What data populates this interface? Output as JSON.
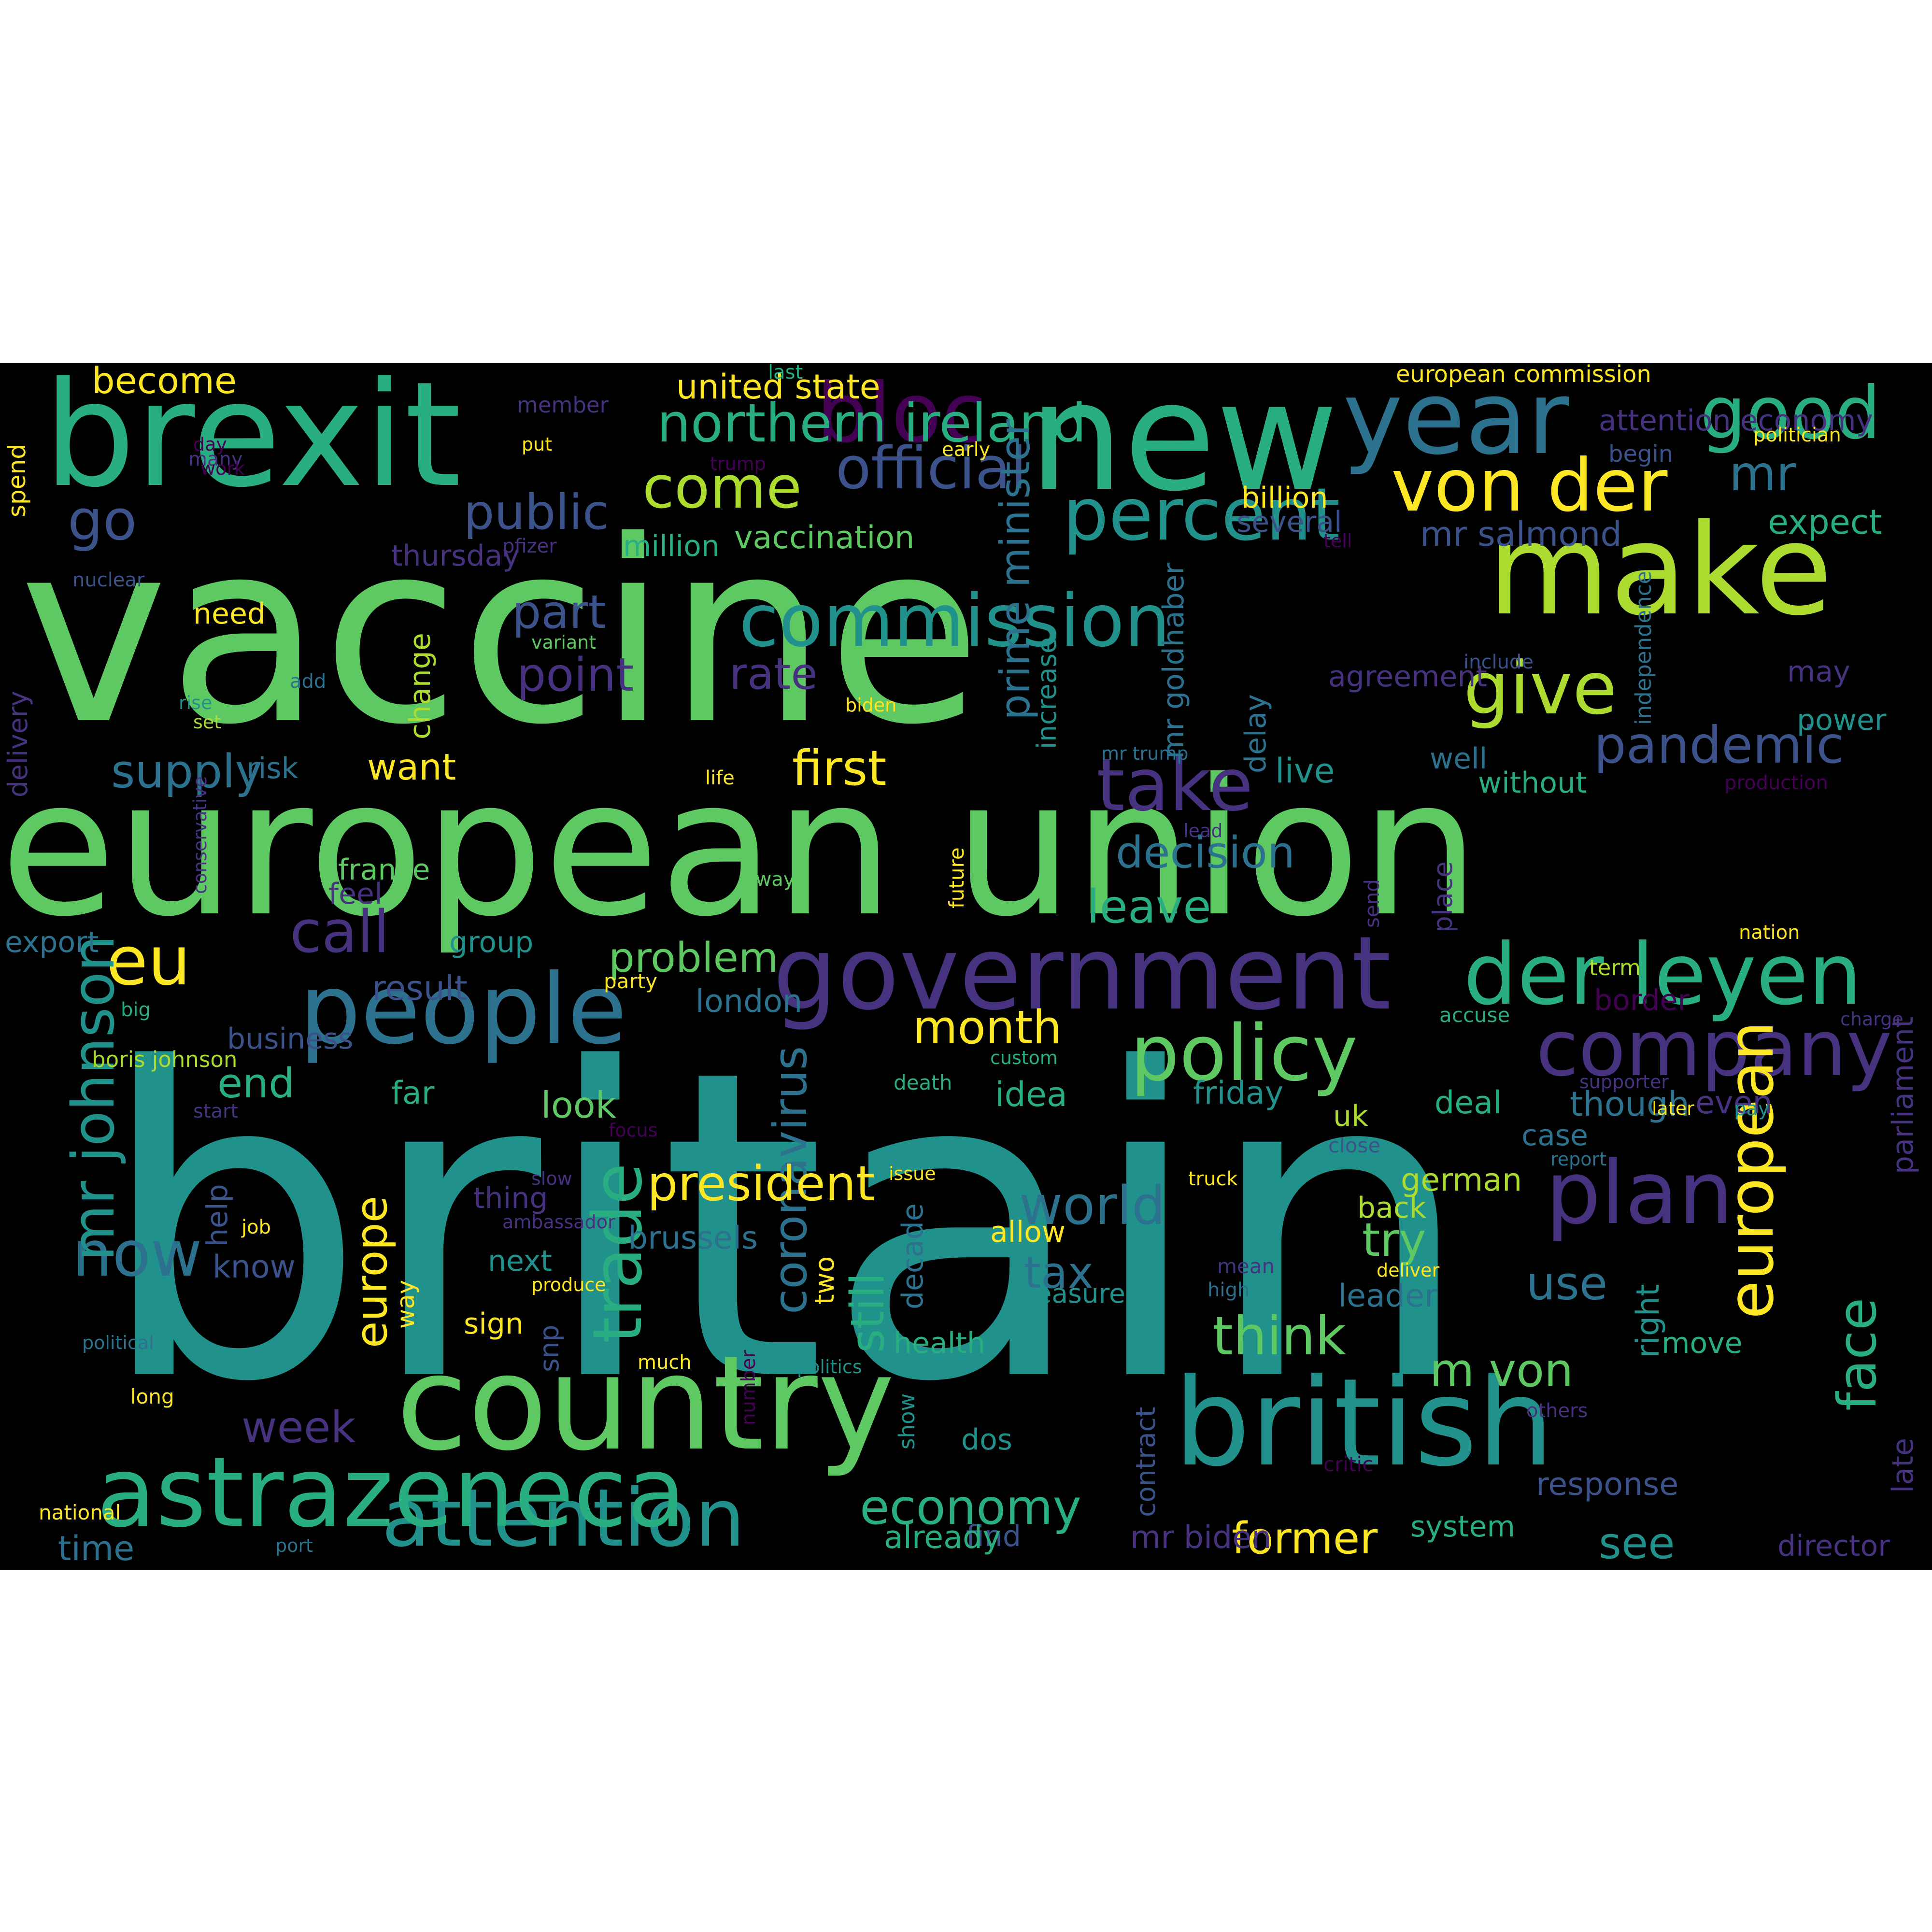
{
  "palette": {
    "purple": "#46327e",
    "indigo": "#3b528b",
    "blue": "#2c728e",
    "teal": "#21918c",
    "green": "#28ae80",
    "mint": "#5ec962",
    "lime": "#addc30",
    "yellow": "#fde725",
    "dark": "#440154"
  },
  "words": [
    {
      "id": "britain",
      "text": "britain",
      "color": "teal"
    },
    {
      "id": "vaccine",
      "text": "vaccine",
      "color": "mint"
    },
    {
      "id": "european-union",
      "text": "european union",
      "color": "mint"
    },
    {
      "id": "new",
      "text": "new",
      "color": "green"
    },
    {
      "id": "brexit",
      "text": "brexit",
      "color": "green"
    },
    {
      "id": "make",
      "text": "make",
      "color": "lime"
    },
    {
      "id": "country",
      "text": "country",
      "color": "mint"
    },
    {
      "id": "british",
      "text": "british",
      "color": "teal"
    },
    {
      "id": "government",
      "text": "government",
      "color": "purple"
    },
    {
      "id": "year",
      "text": "year",
      "color": "blue"
    },
    {
      "id": "people",
      "text": "people",
      "color": "blue"
    },
    {
      "id": "der-leyen",
      "text": "der leyen",
      "color": "green"
    },
    {
      "id": "company",
      "text": "company",
      "color": "purple"
    },
    {
      "id": "policy",
      "text": "policy",
      "color": "mint"
    },
    {
      "id": "attention",
      "text": "attention",
      "color": "teal"
    },
    {
      "id": "astrazeneca",
      "text": "astrazeneca",
      "color": "green"
    },
    {
      "id": "bloc",
      "text": "bloc",
      "color": "dark"
    },
    {
      "id": "good",
      "text": "good",
      "color": "green"
    },
    {
      "id": "give",
      "text": "give",
      "color": "lime"
    },
    {
      "id": "von-der",
      "text": "von der",
      "color": "yellow"
    },
    {
      "id": "percent",
      "text": "percent",
      "color": "teal"
    },
    {
      "id": "take",
      "text": "take",
      "color": "purple"
    },
    {
      "id": "eu",
      "text": "eu",
      "color": "yellow"
    },
    {
      "id": "plan",
      "text": "plan",
      "color": "purple"
    },
    {
      "id": "go",
      "text": "go",
      "color": "indigo"
    },
    {
      "id": "commission",
      "text": "commission",
      "color": "teal"
    },
    {
      "id": "now",
      "text": "now",
      "color": "blue"
    },
    {
      "id": "pandemic",
      "text": "pandemic",
      "color": "indigo"
    },
    {
      "id": "mr-johnson",
      "text": "mr johnson",
      "color": "teal"
    },
    {
      "id": "face",
      "text": "face",
      "color": "green"
    },
    {
      "id": "european",
      "text": "european",
      "color": "yellow"
    },
    {
      "id": "trade",
      "text": "trade",
      "color": "green"
    },
    {
      "id": "call",
      "text": "call",
      "color": "purple"
    },
    {
      "id": "come",
      "text": "come",
      "color": "lime"
    },
    {
      "id": "first",
      "text": "first",
      "color": "yellow"
    },
    {
      "id": "official",
      "text": "official",
      "color": "indigo"
    },
    {
      "id": "mr",
      "text": "mr",
      "color": "blue"
    },
    {
      "id": "public",
      "text": "public",
      "color": "indigo"
    },
    {
      "id": "world",
      "text": "world",
      "color": "blue"
    },
    {
      "id": "think",
      "text": "think",
      "color": "mint"
    },
    {
      "id": "still",
      "text": "still",
      "color": "green"
    },
    {
      "id": "coronavirus",
      "text": "coronavirus",
      "color": "blue"
    },
    {
      "id": "economy",
      "text": "economy",
      "color": "green"
    },
    {
      "id": "m-von",
      "text": "m von",
      "color": "mint"
    },
    {
      "id": "become",
      "text": "become",
      "color": "yellow"
    },
    {
      "id": "northern-ireland",
      "text": "northern ireland",
      "color": "green"
    },
    {
      "id": "part",
      "text": "part",
      "color": "indigo"
    },
    {
      "id": "point",
      "text": "point",
      "color": "purple"
    },
    {
      "id": "rate",
      "text": "rate",
      "color": "purple"
    },
    {
      "id": "supply",
      "text": "supply",
      "color": "blue"
    },
    {
      "id": "want",
      "text": "want",
      "color": "yellow"
    },
    {
      "id": "prime-minister",
      "text": "prime minister",
      "color": "blue"
    },
    {
      "id": "decision",
      "text": "decision",
      "color": "blue"
    },
    {
      "id": "leave",
      "text": "leave",
      "color": "green"
    },
    {
      "id": "month",
      "text": "month",
      "color": "yellow"
    },
    {
      "id": "problem",
      "text": "problem",
      "color": "mint"
    },
    {
      "id": "europe",
      "text": "europe",
      "color": "yellow"
    },
    {
      "id": "president",
      "text": "president",
      "color": "yellow"
    },
    {
      "id": "try",
      "text": "try",
      "color": "mint"
    },
    {
      "id": "use",
      "text": "use",
      "color": "blue"
    },
    {
      "id": "tax",
      "text": "tax",
      "color": "blue"
    },
    {
      "id": "see",
      "text": "see",
      "color": "teal"
    },
    {
      "id": "former",
      "text": "former",
      "color": "yellow"
    },
    {
      "id": "week",
      "text": "week",
      "color": "purple"
    },
    {
      "id": "time",
      "text": "time",
      "color": "blue"
    },
    {
      "id": "mr-salmond",
      "text": "mr salmond",
      "color": "indigo"
    },
    {
      "id": "vaccination",
      "text": "vaccination",
      "color": "mint"
    },
    {
      "id": "united-state",
      "text": "united state",
      "color": "yellow"
    },
    {
      "id": "last",
      "text": "last",
      "color": "green"
    },
    {
      "id": "european-commission",
      "text": "european commission",
      "color": "yellow"
    },
    {
      "id": "attention-economy",
      "text": "attention economy",
      "color": "purple"
    },
    {
      "id": "begin",
      "text": "begin",
      "color": "indigo"
    },
    {
      "id": "billion",
      "text": "billion",
      "color": "yellow"
    },
    {
      "id": "several",
      "text": "several",
      "color": "indigo"
    },
    {
      "id": "expect",
      "text": "expect",
      "color": "green"
    },
    {
      "id": "delay",
      "text": "delay",
      "color": "blue"
    },
    {
      "id": "mr-goldhaber",
      "text": "mr goldhaber",
      "color": "blue"
    },
    {
      "id": "increase",
      "text": "increase",
      "color": "teal"
    },
    {
      "id": "agreement",
      "text": "agreement",
      "color": "purple"
    },
    {
      "id": "include",
      "text": "include",
      "color": "indigo"
    },
    {
      "id": "independence",
      "text": "independence",
      "color": "blue"
    },
    {
      "id": "may",
      "text": "may",
      "color": "purple"
    },
    {
      "id": "power",
      "text": "power",
      "color": "teal"
    },
    {
      "id": "well",
      "text": "well",
      "color": "blue"
    },
    {
      "id": "without",
      "text": "without",
      "color": "green"
    },
    {
      "id": "live",
      "text": "live",
      "color": "teal"
    },
    {
      "id": "change",
      "text": "change",
      "color": "lime"
    },
    {
      "id": "thursday",
      "text": "thursday",
      "color": "purple"
    },
    {
      "id": "need",
      "text": "need",
      "color": "yellow"
    },
    {
      "id": "million",
      "text": "million",
      "color": "green"
    },
    {
      "id": "risk",
      "text": "risk",
      "color": "blue"
    },
    {
      "id": "france",
      "text": "france",
      "color": "mint"
    },
    {
      "id": "feel",
      "text": "feel",
      "color": "purple"
    },
    {
      "id": "group",
      "text": "group",
      "color": "teal"
    },
    {
      "id": "export",
      "text": "export",
      "color": "blue"
    },
    {
      "id": "result",
      "text": "result",
      "color": "indigo"
    },
    {
      "id": "business",
      "text": "business",
      "color": "indigo"
    },
    {
      "id": "end",
      "text": "end",
      "color": "green"
    },
    {
      "id": "far",
      "text": "far",
      "color": "green"
    },
    {
      "id": "look",
      "text": "look",
      "color": "mint"
    },
    {
      "id": "london",
      "text": "london",
      "color": "blue"
    },
    {
      "id": "idea",
      "text": "idea",
      "color": "green"
    },
    {
      "id": "friday",
      "text": "friday",
      "color": "teal"
    },
    {
      "id": "deal",
      "text": "deal",
      "color": "green"
    },
    {
      "id": "though",
      "text": "though",
      "color": "blue"
    },
    {
      "id": "even",
      "text": "even",
      "color": "purple"
    },
    {
      "id": "uk",
      "text": "uk",
      "color": "lime"
    },
    {
      "id": "case",
      "text": "case",
      "color": "blue"
    },
    {
      "id": "german",
      "text": "german",
      "color": "lime"
    },
    {
      "id": "back",
      "text": "back",
      "color": "lime"
    },
    {
      "id": "leader",
      "text": "leader",
      "color": "blue"
    },
    {
      "id": "right",
      "text": "right",
      "color": "teal"
    },
    {
      "id": "move",
      "text": "move",
      "color": "green"
    },
    {
      "id": "system",
      "text": "system",
      "color": "green"
    },
    {
      "id": "response",
      "text": "response",
      "color": "indigo"
    },
    {
      "id": "late",
      "text": "late",
      "color": "purple"
    },
    {
      "id": "parliament",
      "text": "parliament",
      "color": "purple"
    },
    {
      "id": "director",
      "text": "director",
      "color": "purple"
    },
    {
      "id": "border",
      "text": "border",
      "color": "dark"
    },
    {
      "id": "term",
      "text": "term",
      "color": "lime"
    },
    {
      "id": "accuse",
      "text": "accuse",
      "color": "green"
    },
    {
      "id": "nation",
      "text": "nation",
      "color": "yellow"
    },
    {
      "id": "production",
      "text": "production",
      "color": "dark"
    },
    {
      "id": "politician",
      "text": "politician",
      "color": "yellow"
    },
    {
      "id": "supporter",
      "text": "supporter",
      "color": "purple"
    },
    {
      "id": "later",
      "text": "later",
      "color": "yellow"
    },
    {
      "id": "pay",
      "text": "pay",
      "color": "teal"
    },
    {
      "id": "close",
      "text": "close",
      "color": "indigo"
    },
    {
      "id": "report",
      "text": "report",
      "color": "blue"
    },
    {
      "id": "deliver",
      "text": "deliver",
      "color": "yellow"
    },
    {
      "id": "others",
      "text": "others",
      "color": "purple"
    },
    {
      "id": "critic",
      "text": "critic",
      "color": "dark"
    },
    {
      "id": "place",
      "text": "place",
      "color": "purple"
    },
    {
      "id": "send",
      "text": "send",
      "color": "purple"
    },
    {
      "id": "future",
      "text": "future",
      "color": "yellow"
    },
    {
      "id": "lead",
      "text": "lead",
      "color": "purple"
    },
    {
      "id": "away",
      "text": "away",
      "color": "mint"
    },
    {
      "id": "mr-trump",
      "text": "mr trump",
      "color": "blue"
    },
    {
      "id": "life",
      "text": "life",
      "color": "yellow"
    },
    {
      "id": "biden",
      "text": "biden",
      "color": "yellow"
    },
    {
      "id": "party",
      "text": "party",
      "color": "yellow"
    },
    {
      "id": "custom",
      "text": "custom",
      "color": "green"
    },
    {
      "id": "death",
      "text": "death",
      "color": "green"
    },
    {
      "id": "issue",
      "text": "issue",
      "color": "yellow"
    },
    {
      "id": "truck",
      "text": "truck",
      "color": "yellow"
    },
    {
      "id": "mean",
      "text": "mean",
      "color": "purple"
    },
    {
      "id": "high",
      "text": "high",
      "color": "blue"
    },
    {
      "id": "allow",
      "text": "allow",
      "color": "yellow"
    },
    {
      "id": "measure",
      "text": "measure",
      "color": "teal"
    },
    {
      "id": "decade",
      "text": "decade",
      "color": "blue"
    },
    {
      "id": "health",
      "text": "health",
      "color": "green"
    },
    {
      "id": "dos",
      "text": "dos",
      "color": "teal"
    },
    {
      "id": "show",
      "text": "show",
      "color": "teal"
    },
    {
      "id": "contract",
      "text": "contract",
      "color": "indigo"
    },
    {
      "id": "mr-biden",
      "text": "mr biden",
      "color": "purple"
    },
    {
      "id": "find",
      "text": "find",
      "color": "indigo"
    },
    {
      "id": "already",
      "text": "already",
      "color": "green"
    },
    {
      "id": "two",
      "text": "two",
      "color": "yellow"
    },
    {
      "id": "brussels",
      "text": "brussels",
      "color": "blue"
    },
    {
      "id": "next",
      "text": "next",
      "color": "teal"
    },
    {
      "id": "sign",
      "text": "sign",
      "color": "yellow"
    },
    {
      "id": "snp",
      "text": "snp",
      "color": "indigo"
    },
    {
      "id": "much",
      "text": "much",
      "color": "yellow"
    },
    {
      "id": "politics",
      "text": "politics",
      "color": "teal"
    },
    {
      "id": "number",
      "text": "number",
      "color": "dark"
    },
    {
      "id": "thing",
      "text": "thing",
      "color": "purple"
    },
    {
      "id": "know",
      "text": "know",
      "color": "indigo"
    },
    {
      "id": "help",
      "text": "help",
      "color": "indigo"
    },
    {
      "id": "way",
      "text": "way",
      "color": "yellow"
    },
    {
      "id": "ambassador",
      "text": "ambassador",
      "color": "purple"
    },
    {
      "id": "produce",
      "text": "produce",
      "color": "yellow"
    },
    {
      "id": "slow",
      "text": "slow",
      "color": "purple"
    },
    {
      "id": "job",
      "text": "job",
      "color": "yellow"
    },
    {
      "id": "focus",
      "text": "focus",
      "color": "dark"
    },
    {
      "id": "start",
      "text": "start",
      "color": "purple"
    },
    {
      "id": "boris-johnson",
      "text": "boris johnson",
      "color": "lime"
    },
    {
      "id": "big",
      "text": "big",
      "color": "green"
    },
    {
      "id": "conservative",
      "text": "conservative",
      "color": "purple"
    },
    {
      "id": "delivery",
      "text": "delivery",
      "color": "purple"
    },
    {
      "id": "political",
      "text": "political",
      "color": "blue"
    },
    {
      "id": "long",
      "text": "long",
      "color": "yellow"
    },
    {
      "id": "national",
      "text": "national",
      "color": "yellow"
    },
    {
      "id": "port",
      "text": "port",
      "color": "blue"
    },
    {
      "id": "many",
      "text": "many",
      "color": "purple"
    },
    {
      "id": "spend",
      "text": "spend",
      "color": "yellow"
    },
    {
      "id": "member",
      "text": "member",
      "color": "purple"
    },
    {
      "id": "day",
      "text": "day",
      "color": "dark"
    },
    {
      "id": "work",
      "text": "work",
      "color": "dark"
    },
    {
      "id": "put",
      "text": "put",
      "color": "yellow"
    },
    {
      "id": "trump",
      "text": "trump",
      "color": "dark"
    },
    {
      "id": "early",
      "text": "early",
      "color": "yellow"
    },
    {
      "id": "pfizer",
      "text": "pfizer",
      "color": "purple"
    },
    {
      "id": "nuclear",
      "text": "nuclear",
      "color": "indigo"
    },
    {
      "id": "variant",
      "text": "variant",
      "color": "mint"
    },
    {
      "id": "rise",
      "text": "rise",
      "color": "teal"
    },
    {
      "id": "set",
      "text": "set",
      "color": "lime"
    },
    {
      "id": "add",
      "text": "add",
      "color": "blue"
    },
    {
      "id": "tell",
      "text": "tell",
      "color": "dark"
    },
    {
      "id": "charge",
      "text": "charge",
      "color": "purple"
    },
    {
      "id": "u",
      "text": "u",
      "color": "dark"
    }
  ]
}
